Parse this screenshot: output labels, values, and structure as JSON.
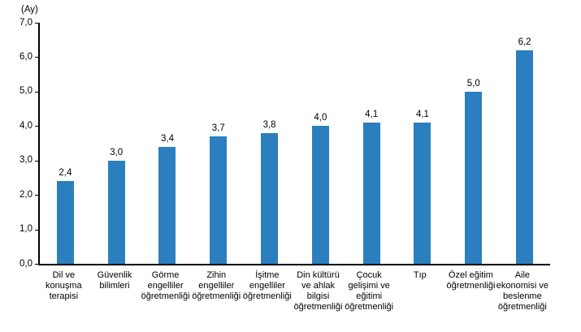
{
  "chart_data": {
    "type": "bar",
    "title": "",
    "unit_label": "(Ay)",
    "xlabel": "",
    "ylabel": "",
    "ylim": [
      0,
      7
    ],
    "y_tick_step": 1,
    "y_tick_labels": [
      "0,0",
      "1,0",
      "2,0",
      "3,0",
      "4,0",
      "5,0",
      "6,0",
      "7,0"
    ],
    "grid": false,
    "legend": "none",
    "bar_color": "#2B7FBE",
    "axis_color": "#000000",
    "text_color": "#000000",
    "categories": [
      "Dil ve konuşma terapisi",
      "Güvenlik bilimleri",
      "Görme engelliler öğretmenliği",
      "Zihin engelliler öğretmenliği",
      "İşitme engelliler öğretmenliği",
      "Din kültürü ve ahlak bilgisi öğretmenliği",
      "Çocuk gelişimi ve eğitimi öğretmenliği",
      "Tıp",
      "Özel eğitim öğretmenliği",
      "Aile ekonomisi ve beslenme öğretmenliği"
    ],
    "category_lines": [
      [
        "Dil ve",
        "konuşma",
        "terapisi"
      ],
      [
        "Güvenlik",
        "bilimleri"
      ],
      [
        "Görme",
        "engelliler",
        "öğretmenliği"
      ],
      [
        "Zihin",
        "engelliler",
        "öğretmenliği"
      ],
      [
        "İşitme",
        "engelliler",
        "öğretmenliği"
      ],
      [
        "Din kültürü",
        "ve ahlak",
        "bilgisi",
        "öğretmenliği"
      ],
      [
        "Çocuk",
        "gelişimi ve",
        "eğitimi",
        "öğretmenliği"
      ],
      [
        "Tıp"
      ],
      [
        "Özel eğitim",
        "öğretmenliği"
      ],
      [
        "Aile",
        "ekonomisi ve",
        "beslenme",
        "öğretmenliği"
      ]
    ],
    "values": [
      2.4,
      3.0,
      3.4,
      3.7,
      3.8,
      4.0,
      4.1,
      4.1,
      5.0,
      6.2
    ],
    "value_labels": [
      "2,4",
      "3,0",
      "3,4",
      "3,7",
      "3,8",
      "4,0",
      "4,1",
      "4,1",
      "5,0",
      "6,2"
    ]
  }
}
